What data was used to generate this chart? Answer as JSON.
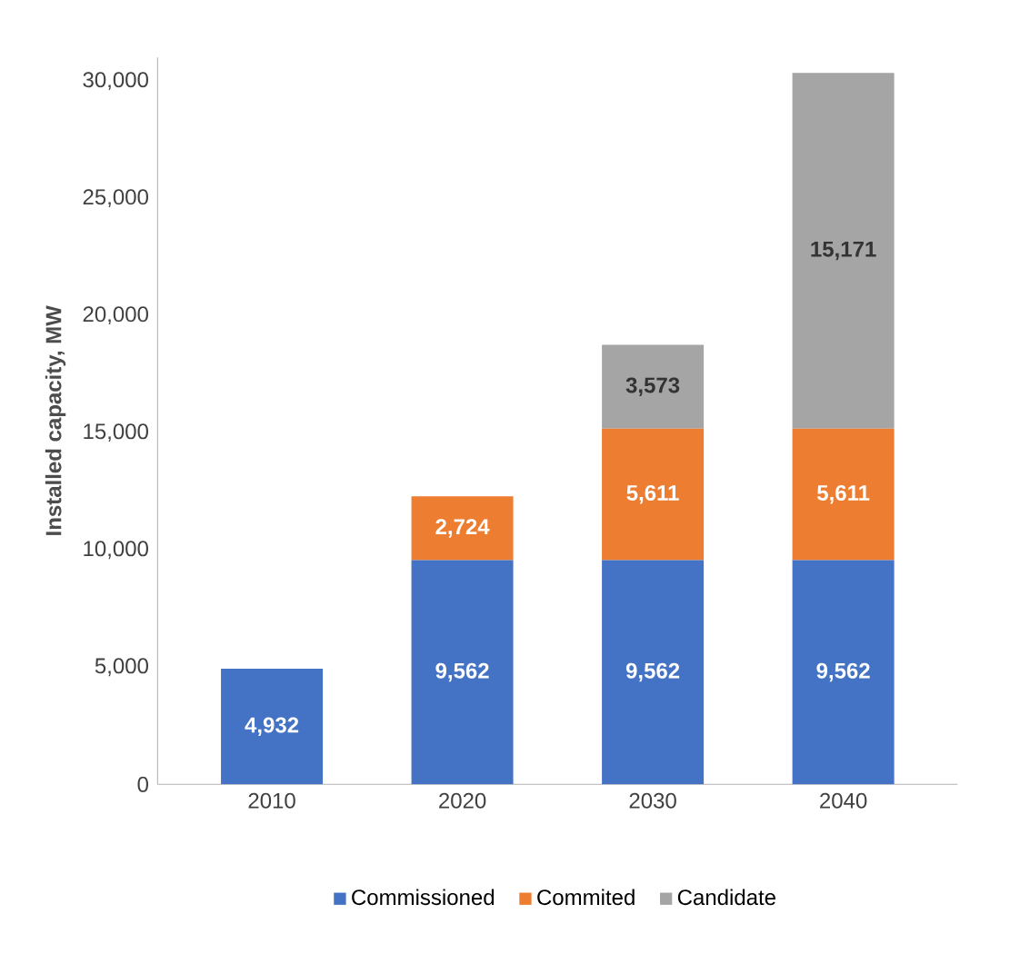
{
  "chart_data": {
    "type": "bar",
    "stacked": true,
    "ylabel": "Installed capacity, MW",
    "categories": [
      "2010",
      "2020",
      "2030",
      "2040"
    ],
    "series": [
      {
        "name": "Commissioned",
        "color": "#4472c4",
        "values": [
          4932,
          9562,
          9562,
          9562
        ],
        "value_labels": [
          "4,932",
          "9,562",
          "9,562",
          "9,562"
        ]
      },
      {
        "name": "Commited",
        "color": "#ed7d31",
        "values": [
          null,
          2724,
          5611,
          5611
        ],
        "value_labels": [
          null,
          "2,724",
          "5,611",
          "5,611"
        ]
      },
      {
        "name": "Candidate",
        "color": "#a5a5a5",
        "values": [
          null,
          null,
          3573,
          15171
        ],
        "value_labels": [
          null,
          null,
          "3,573",
          "15,171"
        ]
      }
    ],
    "ylim": [
      0,
      31000
    ],
    "yticks": [
      {
        "value": 0,
        "label": "0"
      },
      {
        "value": 5000,
        "label": "5,000"
      },
      {
        "value": 10000,
        "label": "10,000"
      },
      {
        "value": 15000,
        "label": "15,000"
      },
      {
        "value": 20000,
        "label": "20,000"
      },
      {
        "value": 25000,
        "label": "25,000"
      },
      {
        "value": 30000,
        "label": "30,000"
      }
    ],
    "grid": false,
    "legend": "bottom"
  }
}
